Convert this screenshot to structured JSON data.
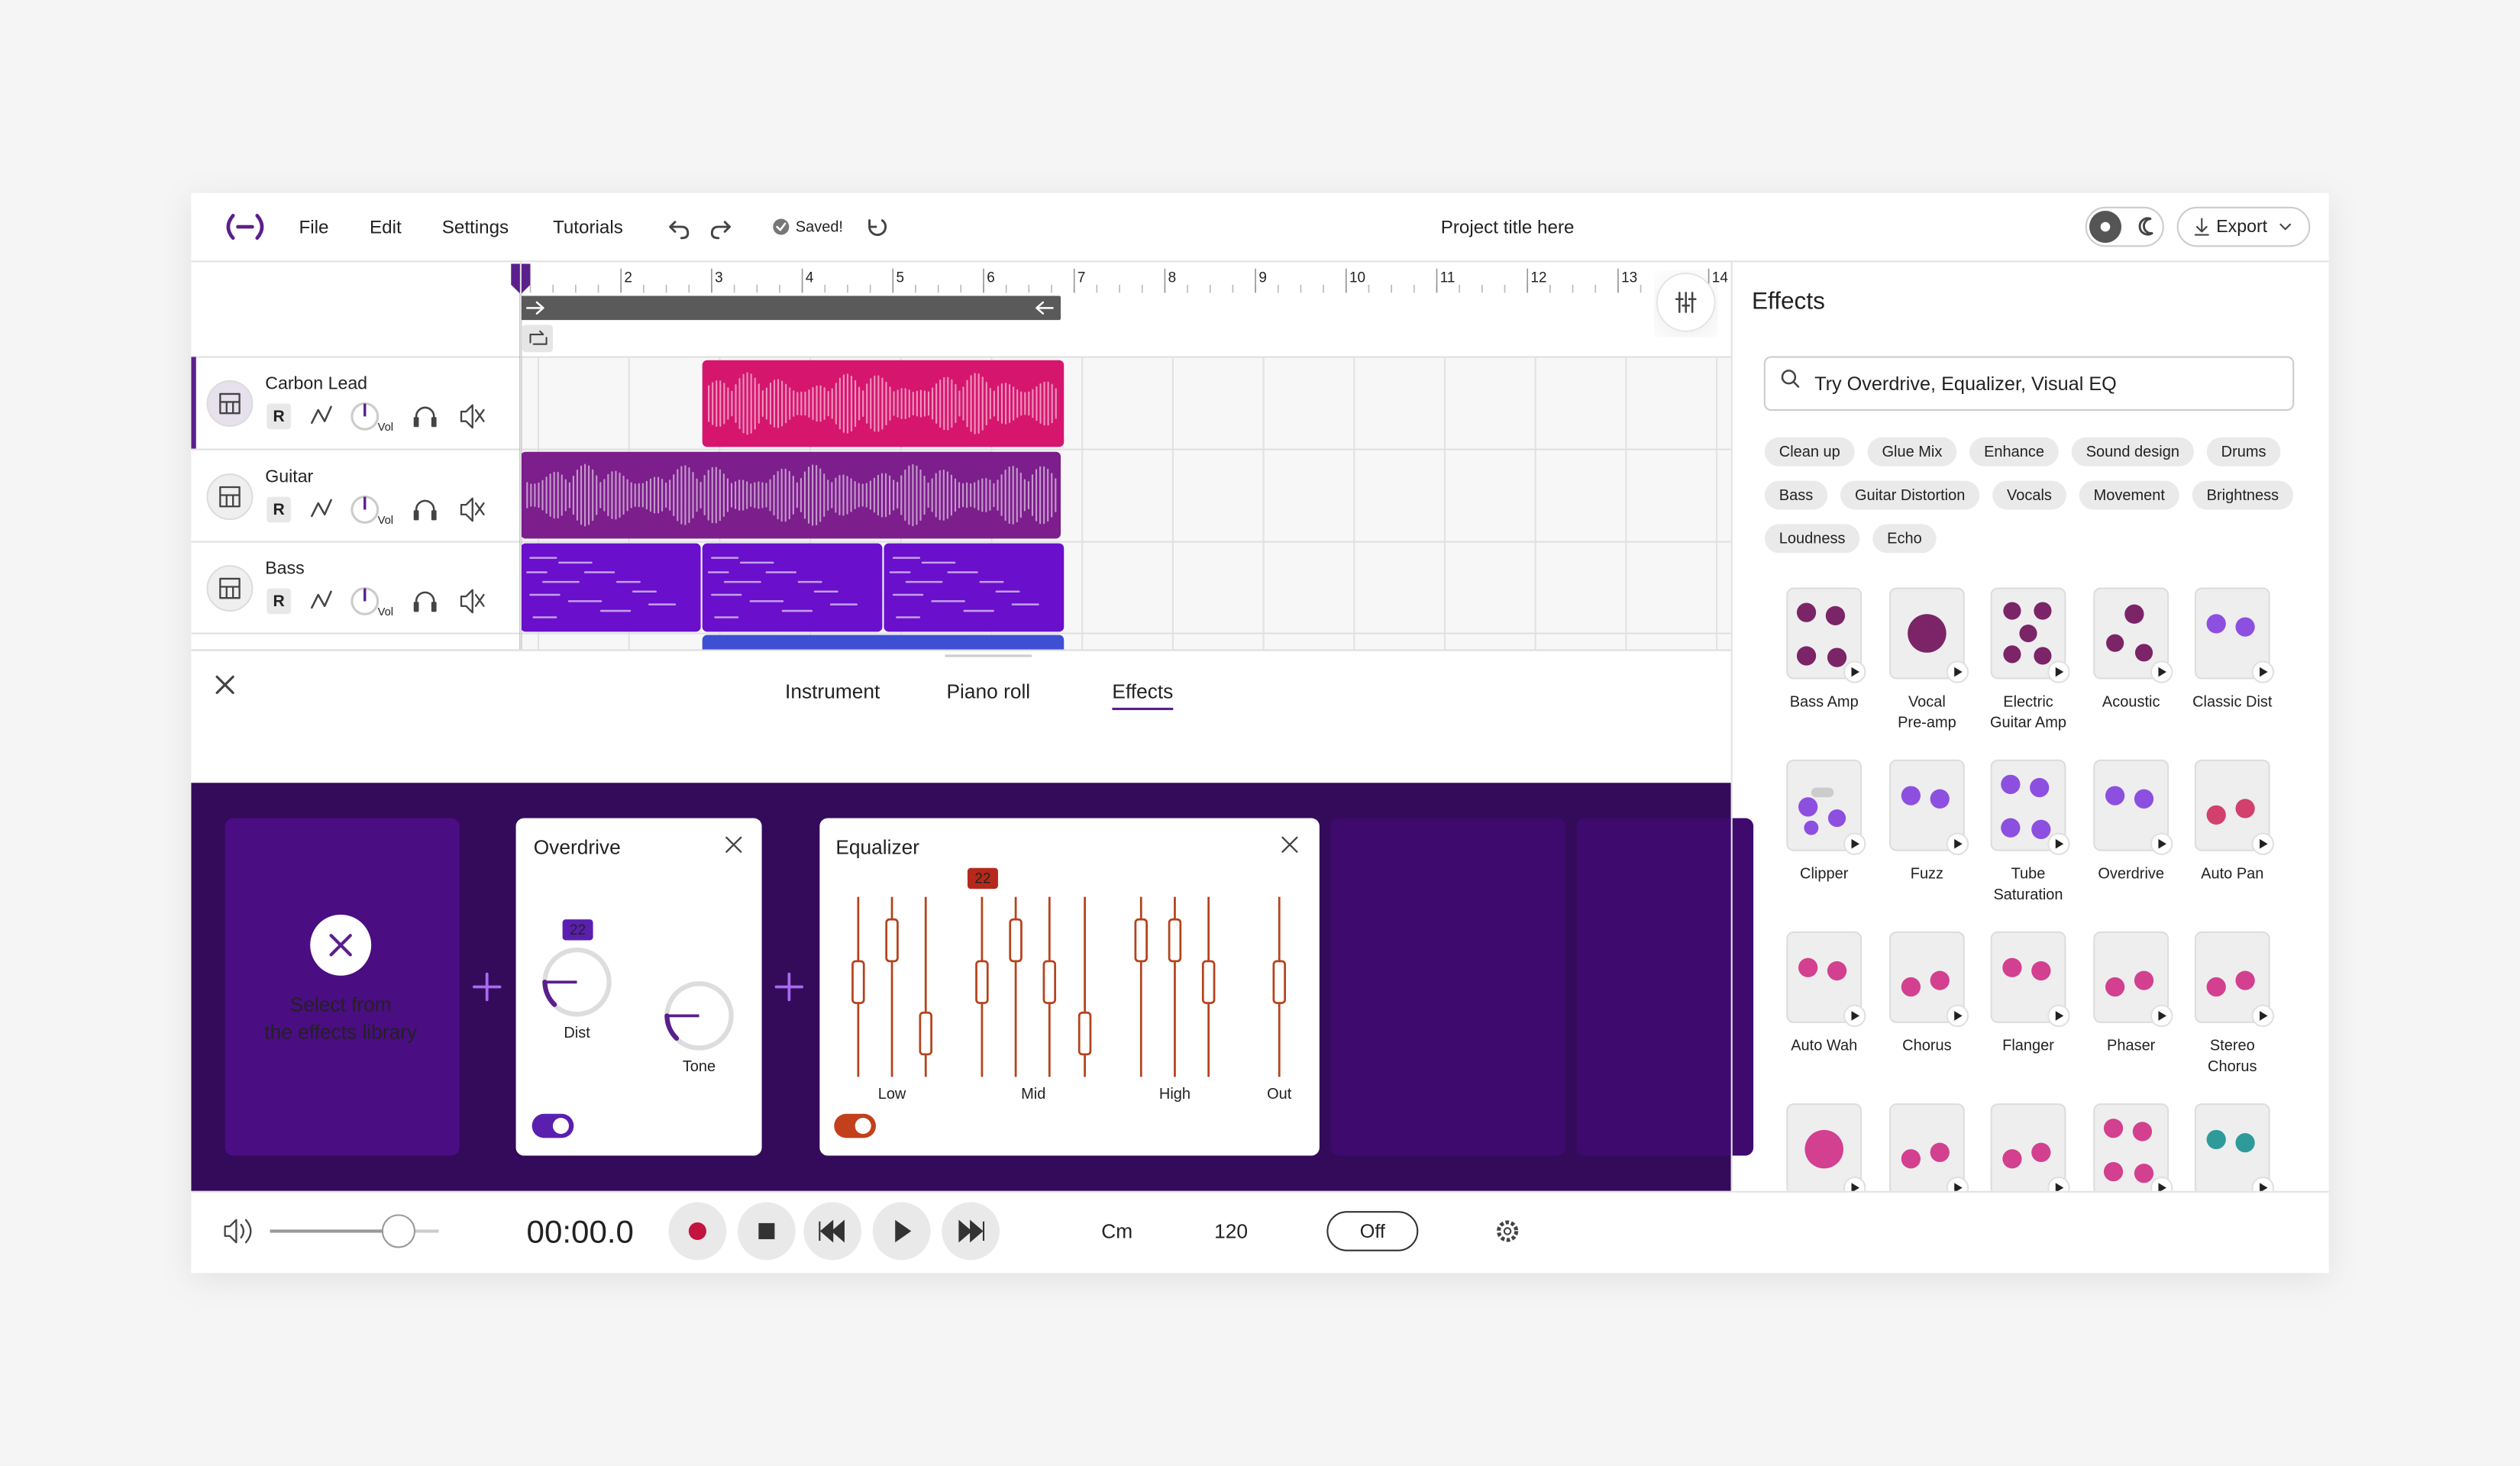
{
  "menu": [
    "File",
    "Edit",
    "Settings",
    "Tutorials"
  ],
  "status": "Saved!",
  "project_title": "Project title here",
  "export": "Export",
  "ruler": [
    2,
    3,
    4,
    5,
    6,
    7,
    8,
    9,
    10,
    11,
    12,
    13,
    14
  ],
  "tracks": [
    {
      "name": "Carbon Lead",
      "record_label": "R",
      "vol_label": "Vol"
    },
    {
      "name": "Guitar",
      "record_label": "R",
      "vol_label": "Vol"
    },
    {
      "name": "Bass",
      "record_label": "R",
      "vol_label": "Vol"
    }
  ],
  "tabs": [
    "Instrument",
    "Piano roll",
    "Effects"
  ],
  "chain": {
    "empty_slot": [
      "Select from",
      "the effects library"
    ],
    "overdrive": {
      "title": "Overdrive",
      "badge": 22,
      "knobs": [
        "Dist",
        "Tone"
      ]
    },
    "equalizer": {
      "title": "Equalizer",
      "badge": 22,
      "bands": [
        "Low",
        "Mid",
        "High",
        "Out"
      ]
    }
  },
  "transport": {
    "time": "00:00.0",
    "key": "Cm",
    "tempo": 120,
    "metronome": "Off"
  },
  "effects_panel": {
    "title": "Effects",
    "search_placeholder": "Try Overdrive, Equalizer, Visual EQ",
    "tags": [
      "Clean up",
      "Glue Mix",
      "Enhance",
      "Sound design",
      "Drums",
      "Bass",
      "Guitar Distortion",
      "Vocals",
      "Movement",
      "Brightness",
      "Loudness",
      "Echo"
    ],
    "presets": [
      [
        "Bass Amp"
      ],
      [
        "Vocal",
        "Pre-amp"
      ],
      [
        "Electric",
        "Guitar Amp"
      ],
      [
        "Acoustic"
      ],
      [
        "Classic Dist"
      ],
      [
        "Clipper"
      ],
      [
        "Fuzz"
      ],
      [
        "Tube",
        "Saturation"
      ],
      [
        "Overdrive"
      ],
      [
        "Auto Pan"
      ],
      [
        "Auto Wah"
      ],
      [
        "Chorus"
      ],
      [
        "Flanger"
      ],
      [
        "Phaser"
      ],
      [
        "Stereo",
        "Chorus"
      ]
    ]
  }
}
